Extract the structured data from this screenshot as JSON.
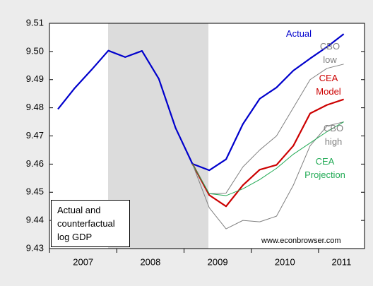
{
  "chart_data": {
    "type": "line",
    "categories": [
      "2007",
      null,
      null,
      null,
      "2008",
      null,
      null,
      null,
      "2009",
      null,
      null,
      null,
      "2010",
      null,
      null,
      null,
      "2011",
      null
    ],
    "ylim": [
      9.43,
      9.51
    ],
    "yticks": [
      9.43,
      9.44,
      9.45,
      9.46,
      9.47,
      9.48,
      9.49,
      {
        "value": 9.5,
        "label": "9.50"
      },
      9.51
    ],
    "series": [
      {
        "name": "Actual",
        "color": "#0000cc",
        "values": [
          9.4795,
          9.487,
          9.4935,
          9.5003,
          9.498,
          9.5002,
          9.4903,
          9.4728,
          9.4601,
          9.4578,
          9.4617,
          9.4742,
          9.4832,
          9.4872,
          9.4932,
          9.4975,
          9.5016,
          9.5062
        ]
      },
      {
        "name": "CBO low",
        "color": "#808080",
        "values": [
          null,
          null,
          null,
          null,
          null,
          null,
          null,
          null,
          9.4601,
          9.4495,
          9.4497,
          9.459,
          9.465,
          9.47,
          9.48,
          9.49,
          9.494,
          9.4955
        ]
      },
      {
        "name": "CEA Model",
        "color": "#cc0000",
        "values": [
          null,
          null,
          null,
          null,
          null,
          null,
          null,
          null,
          9.4601,
          9.449,
          9.445,
          9.4525,
          9.458,
          9.4597,
          9.4665,
          9.478,
          9.481,
          9.483
        ]
      },
      {
        "name": "CBO high",
        "color": "#808080",
        "values": [
          null,
          null,
          null,
          null,
          null,
          null,
          null,
          null,
          9.4601,
          9.4445,
          9.437,
          9.44,
          9.4395,
          9.4415,
          9.4525,
          9.4665,
          9.4735,
          9.475
        ]
      },
      {
        "name": "CEA Projection",
        "color": "#22aa55",
        "values": [
          null,
          null,
          null,
          null,
          null,
          null,
          null,
          null,
          9.4601,
          9.4495,
          9.4488,
          9.4512,
          9.4545,
          9.4585,
          9.4635,
          9.4675,
          9.4715,
          9.475
        ]
      }
    ],
    "annotation": "Actual and counterfactual log GDP",
    "source": "www.econbrowser.com"
  }
}
